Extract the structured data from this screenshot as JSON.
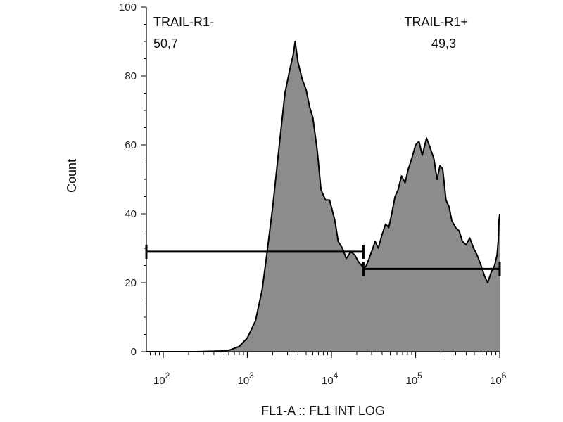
{
  "chart_data": {
    "type": "area",
    "xlabel": "FL1-A :: FL1 INT LOG",
    "ylabel": "Count",
    "xscale": "log",
    "xlim": [
      63,
      1000000
    ],
    "ylim": [
      0,
      100
    ],
    "y_ticks": [
      {
        "value": 0,
        "label": "0"
      },
      {
        "value": 20,
        "label": "20"
      },
      {
        "value": 40,
        "label": "40"
      },
      {
        "value": 60,
        "label": "60"
      },
      {
        "value": 80,
        "label": "80"
      },
      {
        "value": 100,
        "label": "100"
      }
    ],
    "x_ticks": [
      {
        "value": 100,
        "base": "10",
        "exp": "2"
      },
      {
        "value": 1000,
        "base": "10",
        "exp": "3"
      },
      {
        "value": 10000,
        "base": "10",
        "exp": "4"
      },
      {
        "value": 100000,
        "base": "10",
        "exp": "5"
      },
      {
        "value": 1000000,
        "base": "10",
        "exp": "6"
      }
    ],
    "fill_color": "#8c8c8c",
    "line_color": "#000000",
    "series": [
      {
        "x": [
          63,
          250,
          500,
          620,
          800,
          1000,
          1250,
          1500,
          1700,
          2000,
          2400,
          2800,
          3200,
          3500,
          3700,
          4000,
          4500,
          5000,
          5500,
          6000,
          6800,
          7500,
          8500,
          9500,
          11000,
          12000,
          13500,
          15000,
          17000,
          19000,
          21000,
          23000,
          24000,
          26000,
          28000,
          30000,
          33000,
          36000,
          40000,
          44000,
          48000,
          52000,
          57000,
          62000,
          68000,
          75000,
          82000,
          90000,
          100000,
          110000,
          120000,
          135000,
          150000,
          165000,
          180000,
          195000,
          210000,
          230000,
          250000,
          270000,
          300000,
          330000,
          360000,
          400000,
          440000,
          490000,
          540000,
          600000,
          660000,
          720000,
          790000,
          870000,
          930000,
          960000,
          980000,
          1000000
        ],
        "y": [
          0,
          0,
          0.2,
          0.5,
          1.5,
          4,
          9,
          18,
          28,
          42,
          60,
          75,
          82,
          86,
          90,
          84,
          79,
          76,
          71,
          68,
          58,
          47,
          44,
          44,
          38,
          32,
          30,
          27,
          29,
          28,
          26,
          25,
          24,
          25,
          27,
          29,
          32,
          30,
          34,
          37,
          36,
          40,
          45,
          47,
          51,
          49,
          53,
          56,
          60,
          61,
          57,
          62,
          59,
          56,
          50,
          54,
          53,
          44,
          42,
          38,
          36,
          35,
          32,
          31,
          33,
          30,
          28,
          25,
          22,
          20,
          23,
          25,
          28,
          32,
          38,
          40
        ]
      }
    ],
    "gates": [
      {
        "name": "TRAIL-R1-",
        "x_from": 63,
        "x_to": 24000,
        "y": 29,
        "percent": "50,7"
      },
      {
        "name": "TRAIL-R1+",
        "x_from": 24000,
        "x_to": 1000000,
        "y": 24,
        "percent": "49,3"
      }
    ]
  }
}
